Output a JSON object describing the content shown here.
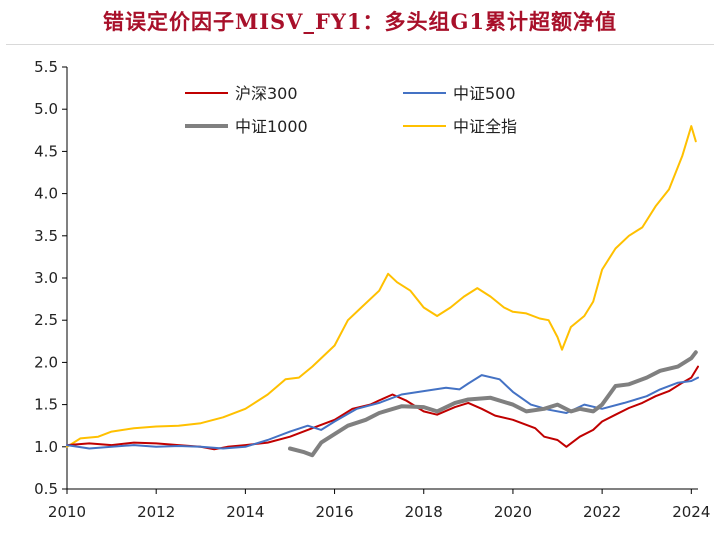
{
  "title": "错误定价因子MISV_FY1：多头组G1累计超额净值",
  "chart_data": {
    "type": "line",
    "title": "错误定价因子MISV_FY1：多头组G1累计超额净值",
    "xlabel": "",
    "ylabel": "",
    "xlim": [
      2010,
      2024.15
    ],
    "ylim": [
      0.5,
      5.5
    ],
    "x_ticks": [
      "2010",
      "2012",
      "2014",
      "2016",
      "2018",
      "2020",
      "2022",
      "2024"
    ],
    "y_ticks": [
      "0.5",
      "1.0",
      "1.5",
      "2.0",
      "2.5",
      "3.0",
      "3.5",
      "4.0",
      "4.5",
      "5.0",
      "5.5"
    ],
    "grid": "none",
    "legend_position": "top-left",
    "series": [
      {
        "name": "沪深300",
        "color": "#c00000",
        "width": 2,
        "points": [
          [
            2010.0,
            1.02
          ],
          [
            2010.5,
            1.04
          ],
          [
            2011.0,
            1.02
          ],
          [
            2011.5,
            1.05
          ],
          [
            2012.0,
            1.04
          ],
          [
            2012.5,
            1.02
          ],
          [
            2013.0,
            1.0
          ],
          [
            2013.3,
            0.97
          ],
          [
            2013.6,
            1.0
          ],
          [
            2014.0,
            1.02
          ],
          [
            2014.5,
            1.05
          ],
          [
            2015.0,
            1.12
          ],
          [
            2015.5,
            1.22
          ],
          [
            2016.0,
            1.32
          ],
          [
            2016.4,
            1.45
          ],
          [
            2016.8,
            1.5
          ],
          [
            2017.0,
            1.55
          ],
          [
            2017.3,
            1.62
          ],
          [
            2017.6,
            1.55
          ],
          [
            2018.0,
            1.42
          ],
          [
            2018.3,
            1.38
          ],
          [
            2018.7,
            1.47
          ],
          [
            2019.0,
            1.52
          ],
          [
            2019.3,
            1.45
          ],
          [
            2019.6,
            1.37
          ],
          [
            2020.0,
            1.32
          ],
          [
            2020.5,
            1.22
          ],
          [
            2020.7,
            1.12
          ],
          [
            2021.0,
            1.08
          ],
          [
            2021.2,
            1.0
          ],
          [
            2021.5,
            1.12
          ],
          [
            2021.8,
            1.2
          ],
          [
            2022.0,
            1.3
          ],
          [
            2022.3,
            1.38
          ],
          [
            2022.6,
            1.46
          ],
          [
            2022.9,
            1.52
          ],
          [
            2023.2,
            1.6
          ],
          [
            2023.5,
            1.66
          ],
          [
            2023.8,
            1.76
          ],
          [
            2024.0,
            1.82
          ],
          [
            2024.15,
            1.95
          ]
        ]
      },
      {
        "name": "中证500",
        "color": "#4472c4",
        "width": 2,
        "points": [
          [
            2010.0,
            1.02
          ],
          [
            2010.5,
            0.98
          ],
          [
            2011.0,
            1.0
          ],
          [
            2011.5,
            1.02
          ],
          [
            2012.0,
            1.0
          ],
          [
            2012.5,
            1.01
          ],
          [
            2013.0,
            1.0
          ],
          [
            2013.5,
            0.98
          ],
          [
            2014.0,
            1.0
          ],
          [
            2014.5,
            1.08
          ],
          [
            2015.0,
            1.18
          ],
          [
            2015.4,
            1.25
          ],
          [
            2015.7,
            1.2
          ],
          [
            2016.0,
            1.3
          ],
          [
            2016.5,
            1.45
          ],
          [
            2017.0,
            1.52
          ],
          [
            2017.5,
            1.62
          ],
          [
            2018.0,
            1.66
          ],
          [
            2018.5,
            1.7
          ],
          [
            2018.8,
            1.68
          ],
          [
            2019.0,
            1.75
          ],
          [
            2019.3,
            1.85
          ],
          [
            2019.7,
            1.8
          ],
          [
            2020.0,
            1.65
          ],
          [
            2020.4,
            1.5
          ],
          [
            2020.8,
            1.44
          ],
          [
            2021.2,
            1.4
          ],
          [
            2021.6,
            1.5
          ],
          [
            2022.0,
            1.45
          ],
          [
            2022.5,
            1.52
          ],
          [
            2023.0,
            1.6
          ],
          [
            2023.3,
            1.68
          ],
          [
            2023.7,
            1.76
          ],
          [
            2024.0,
            1.78
          ],
          [
            2024.15,
            1.82
          ]
        ]
      },
      {
        "name": "中证1000",
        "color": "#808080",
        "width": 4,
        "points": [
          [
            2015.0,
            0.98
          ],
          [
            2015.3,
            0.94
          ],
          [
            2015.5,
            0.9
          ],
          [
            2015.7,
            1.05
          ],
          [
            2016.0,
            1.15
          ],
          [
            2016.3,
            1.25
          ],
          [
            2016.7,
            1.32
          ],
          [
            2017.0,
            1.4
          ],
          [
            2017.5,
            1.48
          ],
          [
            2018.0,
            1.47
          ],
          [
            2018.3,
            1.42
          ],
          [
            2018.7,
            1.52
          ],
          [
            2019.0,
            1.56
          ],
          [
            2019.5,
            1.58
          ],
          [
            2020.0,
            1.5
          ],
          [
            2020.3,
            1.42
          ],
          [
            2020.7,
            1.45
          ],
          [
            2021.0,
            1.5
          ],
          [
            2021.3,
            1.42
          ],
          [
            2021.5,
            1.45
          ],
          [
            2021.8,
            1.42
          ],
          [
            2022.0,
            1.5
          ],
          [
            2022.3,
            1.72
          ],
          [
            2022.6,
            1.74
          ],
          [
            2023.0,
            1.82
          ],
          [
            2023.3,
            1.9
          ],
          [
            2023.7,
            1.95
          ],
          [
            2024.0,
            2.05
          ],
          [
            2024.1,
            2.12
          ]
        ]
      },
      {
        "name": "中证全指",
        "color": "#ffc000",
        "width": 2,
        "points": [
          [
            2010.0,
            1.0
          ],
          [
            2010.3,
            1.1
          ],
          [
            2010.7,
            1.12
          ],
          [
            2011.0,
            1.18
          ],
          [
            2011.5,
            1.22
          ],
          [
            2012.0,
            1.24
          ],
          [
            2012.5,
            1.25
          ],
          [
            2013.0,
            1.28
          ],
          [
            2013.5,
            1.35
          ],
          [
            2014.0,
            1.45
          ],
          [
            2014.5,
            1.62
          ],
          [
            2014.9,
            1.8
          ],
          [
            2015.2,
            1.82
          ],
          [
            2015.5,
            1.95
          ],
          [
            2016.0,
            2.2
          ],
          [
            2016.3,
            2.5
          ],
          [
            2016.6,
            2.65
          ],
          [
            2017.0,
            2.85
          ],
          [
            2017.2,
            3.05
          ],
          [
            2017.4,
            2.95
          ],
          [
            2017.7,
            2.85
          ],
          [
            2018.0,
            2.65
          ],
          [
            2018.3,
            2.55
          ],
          [
            2018.6,
            2.65
          ],
          [
            2018.9,
            2.78
          ],
          [
            2019.2,
            2.88
          ],
          [
            2019.5,
            2.78
          ],
          [
            2019.8,
            2.65
          ],
          [
            2020.0,
            2.6
          ],
          [
            2020.3,
            2.58
          ],
          [
            2020.6,
            2.52
          ],
          [
            2020.8,
            2.5
          ],
          [
            2021.0,
            2.3
          ],
          [
            2021.1,
            2.15
          ],
          [
            2021.3,
            2.42
          ],
          [
            2021.6,
            2.55
          ],
          [
            2021.8,
            2.72
          ],
          [
            2022.0,
            3.1
          ],
          [
            2022.3,
            3.35
          ],
          [
            2022.6,
            3.5
          ],
          [
            2022.9,
            3.6
          ],
          [
            2023.2,
            3.85
          ],
          [
            2023.5,
            4.05
          ],
          [
            2023.8,
            4.45
          ],
          [
            2024.0,
            4.8
          ],
          [
            2024.1,
            4.62
          ]
        ]
      }
    ]
  }
}
